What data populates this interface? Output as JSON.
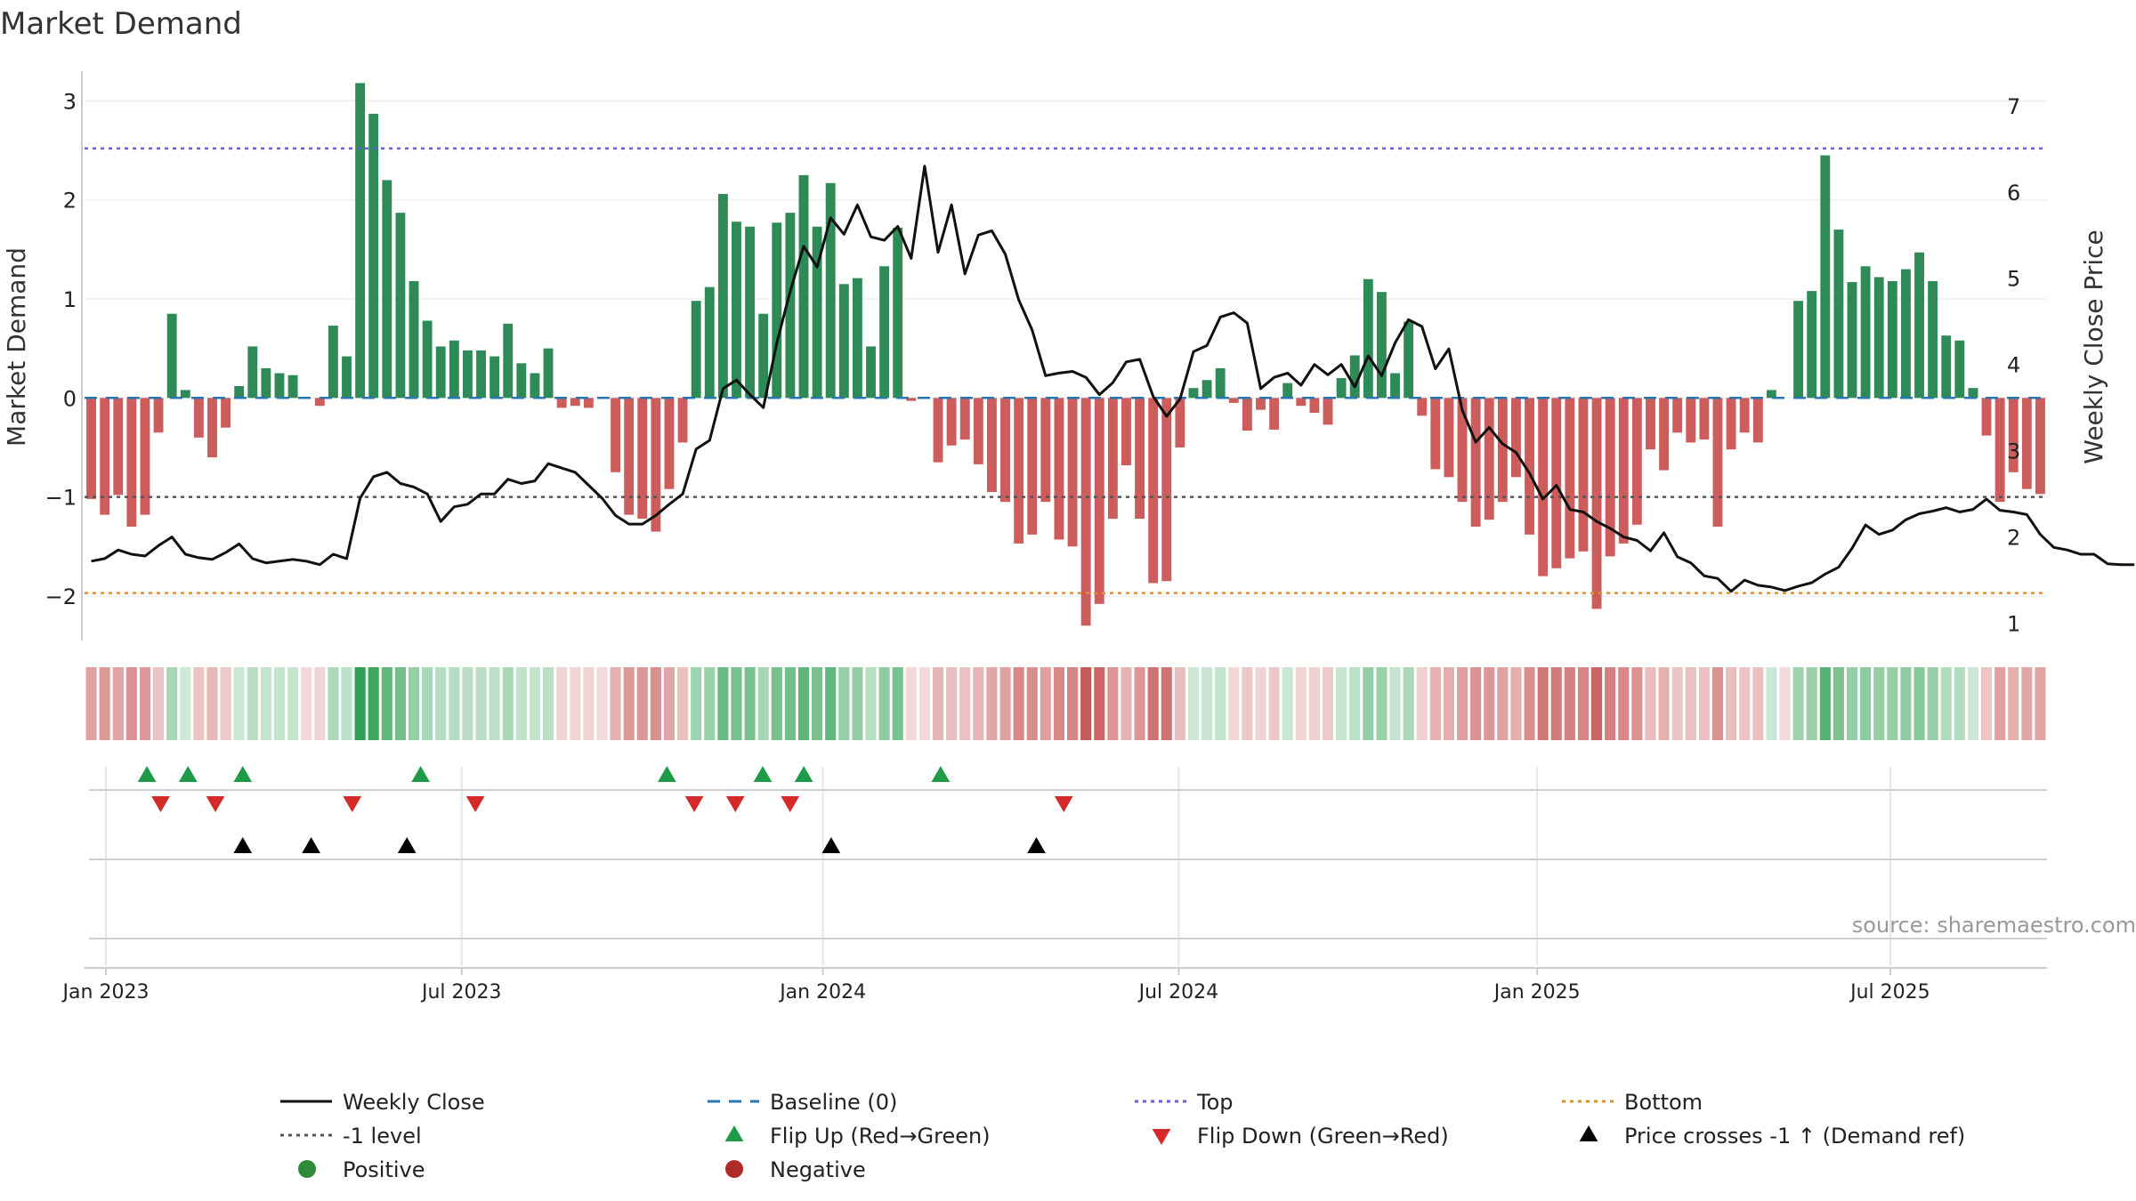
{
  "chart_data": {
    "type": "bar",
    "title": "Market Demand",
    "ylabel_left": "Market Demand",
    "ylabel_right": "Weekly Close Price",
    "xlabel": "",
    "ylim_left": [
      -2.45,
      3.3
    ],
    "ylim_right": [
      0.8,
      7.4
    ],
    "yticks_left": [
      3,
      2,
      1,
      0,
      -1,
      -2
    ],
    "yticks_left_labels": [
      "3",
      "2",
      "1",
      "0",
      "−1",
      "−2"
    ],
    "yticks_right": [
      7,
      6,
      5,
      4,
      3,
      2,
      1
    ],
    "x_ticks": [
      {
        "label": "Jan 2023",
        "week": 0
      },
      {
        "label": "Jul 2023",
        "week": 26
      },
      {
        "label": "Jan 2024",
        "week": 52.4
      },
      {
        "label": "Jul 2024",
        "week": 78.4
      },
      {
        "label": "Jan 2025",
        "week": 104.6
      },
      {
        "label": "Jul 2025",
        "week": 130.4
      }
    ],
    "reference_lines": {
      "baseline": 0,
      "minus_one": -1,
      "top": 2.52,
      "bottom": -1.97
    },
    "demand": [
      -1.02,
      -1.18,
      -0.98,
      -1.3,
      -1.18,
      -0.35,
      0.85,
      0.08,
      -0.4,
      -0.6,
      -0.3,
      0.12,
      0.52,
      0.3,
      0.25,
      0.23,
      0,
      -0.08,
      0.73,
      0.42,
      3.18,
      2.87,
      2.2,
      1.87,
      1.18,
      0.78,
      0.52,
      0.58,
      0.48,
      0.48,
      0.42,
      0.75,
      0.35,
      0.25,
      0.5,
      -0.1,
      -0.08,
      -0.1,
      0,
      -0.75,
      -1.18,
      -1.22,
      -1.35,
      -0.92,
      -0.45,
      0.98,
      1.12,
      2.06,
      1.78,
      1.73,
      0.85,
      1.77,
      1.87,
      2.25,
      1.73,
      2.17,
      1.15,
      1.21,
      0.52,
      1.33,
      1.72,
      -0.03,
      0,
      -0.65,
      -0.48,
      -0.42,
      -0.67,
      -0.95,
      -1.05,
      -1.47,
      -1.38,
      -1.05,
      -1.43,
      -1.5,
      -2.3,
      -2.08,
      -1.22,
      -0.68,
      -1.22,
      -1.87,
      -1.85,
      -0.5,
      0.1,
      0.18,
      0.3,
      -0.05,
      -0.33,
      -0.12,
      -0.32,
      0.15,
      -0.08,
      -0.15,
      -0.27,
      0.2,
      0.43,
      1.2,
      1.07,
      0.25,
      0.77,
      -0.18,
      -0.72,
      -0.8,
      -1.05,
      -1.3,
      -1.23,
      -1.05,
      -0.8,
      -1.38,
      -1.8,
      -1.72,
      -1.62,
      -1.55,
      -2.13,
      -1.6,
      -1.47,
      -1.28,
      -0.52,
      -0.73,
      -0.35,
      -0.45,
      -0.42,
      -1.3,
      -0.52,
      -0.35,
      -0.45,
      0.08,
      0,
      0.98,
      1.08,
      2.45,
      1.7,
      1.17,
      1.33,
      1.22,
      1.18,
      1.3,
      1.47,
      1.18,
      0.63,
      0.58,
      0.1,
      -0.38,
      -1.05,
      -0.75,
      -0.92,
      -0.97
    ],
    "weekly_close": [
      1.72,
      1.75,
      1.85,
      1.8,
      1.78,
      1.9,
      2.0,
      1.8,
      1.76,
      1.74,
      1.82,
      1.92,
      1.75,
      1.7,
      1.72,
      1.74,
      1.72,
      1.68,
      1.8,
      1.75,
      2.45,
      2.7,
      2.75,
      2.62,
      2.58,
      2.5,
      2.18,
      2.35,
      2.38,
      2.5,
      2.5,
      2.67,
      2.62,
      2.65,
      2.85,
      2.8,
      2.75,
      2.6,
      2.45,
      2.25,
      2.15,
      2.15,
      2.25,
      2.38,
      2.5,
      3.02,
      3.12,
      3.72,
      3.82,
      3.65,
      3.5,
      4.25,
      4.85,
      5.37,
      5.13,
      5.7,
      5.51,
      5.85,
      5.48,
      5.44,
      5.6,
      5.23,
      6.3,
      5.3,
      5.85,
      5.05,
      5.5,
      5.55,
      5.28,
      4.75,
      4.4,
      3.87,
      3.9,
      3.92,
      3.85,
      3.65,
      3.79,
      4.03,
      4.06,
      3.63,
      3.4,
      3.6,
      4.15,
      4.22,
      4.55,
      4.6,
      4.48,
      3.72,
      3.85,
      3.9,
      3.76,
      4.0,
      3.88,
      4.0,
      3.74,
      4.1,
      3.87,
      4.25,
      4.52,
      4.44,
      3.95,
      4.18,
      3.47,
      3.1,
      3.27,
      3.08,
      2.98,
      2.74,
      2.44,
      2.6,
      2.32,
      2.29,
      2.18,
      2.1,
      2.0,
      1.96,
      1.84,
      2.05,
      1.77,
      1.7,
      1.55,
      1.52,
      1.37,
      1.5,
      1.44,
      1.42,
      1.38,
      1.43,
      1.47,
      1.57,
      1.65,
      1.87,
      2.14,
      2.03,
      2.08,
      2.2,
      2.27,
      2.3,
      2.34,
      2.29,
      2.32,
      2.44,
      2.31,
      2.29,
      2.26,
      2.03,
      1.88,
      1.85,
      1.8,
      1.8,
      1.69,
      1.68,
      1.68
    ],
    "strip_labels": {
      "positive": "Positive",
      "negative": "Negative"
    },
    "flip_up_weeks": [
      3,
      6,
      10,
      23,
      41,
      48,
      51,
      61
    ],
    "flip_down_weeks": [
      4,
      8,
      18,
      27,
      43,
      46,
      50,
      70
    ],
    "price_cross_weeks": [
      10,
      15,
      22,
      53,
      68
    ],
    "legend": [
      {
        "label": "Weekly Close",
        "kind": "line",
        "color": "#111111"
      },
      {
        "label": "Baseline (0)",
        "kind": "dash",
        "color": "#2a76b3"
      },
      {
        "label": "Top",
        "kind": "dot",
        "color": "#6b5bd6"
      },
      {
        "label": "Bottom",
        "kind": "dot",
        "color": "#e0912a"
      },
      {
        "label": "-1 level",
        "kind": "dot",
        "color": "#555555"
      },
      {
        "label": "Flip Up (Red→Green)",
        "kind": "triangle-up",
        "color": "#1f9a48"
      },
      {
        "label": "Flip Down (Green→Red)",
        "kind": "triangle-down",
        "color": "#d42a2a"
      },
      {
        "label": "Price crosses -1 ↑ (Demand ref)",
        "kind": "triangle-up",
        "color": "#000000"
      },
      {
        "label": "Positive",
        "kind": "circle",
        "color": "#2e8b3a"
      },
      {
        "label": "Negative",
        "kind": "circle",
        "color": "#b02a2a"
      }
    ],
    "source": "source: sharemaestro.com"
  },
  "colors": {
    "positive_bar": "#2e8a57",
    "negative_bar": "#cd5c5c",
    "price_line": "#111111",
    "baseline": "#2a76b3",
    "minus_one": "#555555",
    "top": "#6b5bd6",
    "bottom": "#e0912a",
    "flip_up": "#1f9a48",
    "flip_down": "#d42a2a",
    "cross": "#000000",
    "grid": "#e6e6e6",
    "axis": "#cccccc",
    "text": "#222222",
    "source": "#999999"
  }
}
